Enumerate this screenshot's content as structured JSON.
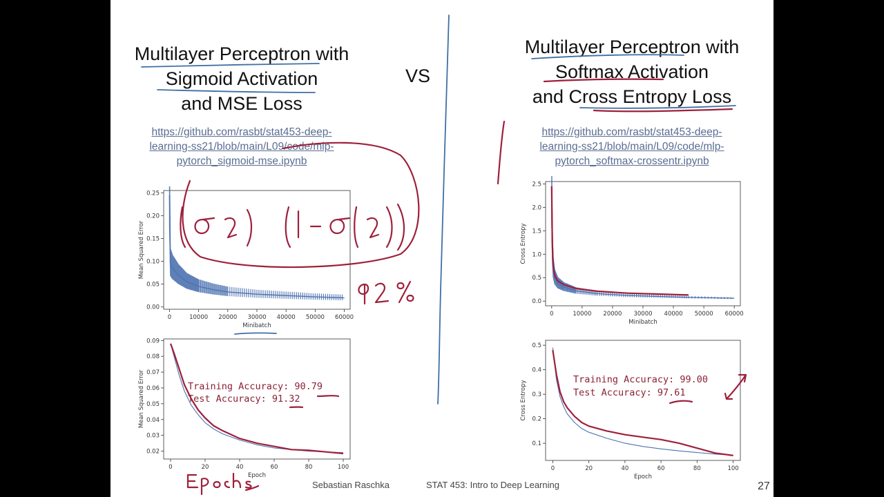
{
  "left": {
    "title_lines": [
      "Multilayer Perceptron with",
      "Sigmoid Activation",
      "and MSE Loss"
    ],
    "link_lines": [
      "https://github.com/rasbt/stat453-deep-",
      "learning-ss21/blob/main/L09/code/mlp-",
      "pytorch_sigmoid-mse.ipynb"
    ]
  },
  "vs_label": "VS",
  "right": {
    "title_lines": [
      "Multilayer Perceptron with",
      "Softmax Activation",
      "and Cross Entropy Loss"
    ],
    "link_lines": [
      "https://github.com/rasbt/stat453-deep-",
      "learning-ss21/blob/main/L09/code/mlp-",
      "pytorch_softmax-crossentr.ipynb"
    ]
  },
  "footer": {
    "author": "Sebastian Raschka",
    "course": "STAT 453: Intro to Deep Learning",
    "page": "27"
  },
  "accuracy_notes": {
    "left_train": "Training Accuracy: 90.79",
    "left_test": "Test Accuracy: 91.32",
    "right_train": "Training Accuracy: 99.00",
    "right_test": "Test Accuracy: 97.61"
  },
  "colors": {
    "ink": "#9e1f3a",
    "series": "#4c72b0",
    "link": "#5a6d92"
  },
  "chart_data": [
    {
      "id": "left-minibatch",
      "type": "line",
      "xlabel": "Minibatch",
      "ylabel": "Mean Squared Error",
      "xticks": [
        0,
        10000,
        20000,
        30000,
        40000,
        50000,
        60000
      ],
      "yticks": [
        0.0,
        0.05,
        0.1,
        0.15,
        0.2,
        0.25
      ],
      "ytick_labels": [
        "0.00",
        "0.05",
        "0.10",
        "0.15",
        "0.20",
        "0.25"
      ],
      "xlim": [
        -2000,
        62000
      ],
      "ylim": [
        -0.005,
        0.255
      ],
      "series": [
        {
          "x": [
            0,
            300,
            1000,
            3000,
            6000,
            10000,
            15000,
            20000,
            30000,
            40000,
            50000,
            60000
          ],
          "y": [
            0.245,
            0.095,
            0.085,
            0.07,
            0.055,
            0.045,
            0.038,
            0.033,
            0.028,
            0.025,
            0.022,
            0.02
          ]
        }
      ]
    },
    {
      "id": "left-epoch",
      "type": "line",
      "xlabel": "Epoch",
      "ylabel": "Mean Squared Error",
      "xticks": [
        0,
        20,
        40,
        60,
        80,
        100
      ],
      "yticks": [
        0.02,
        0.03,
        0.04,
        0.05,
        0.06,
        0.07,
        0.08,
        0.09
      ],
      "ytick_labels": [
        "0.02",
        "0.03",
        "0.04",
        "0.05",
        "0.06",
        "0.07",
        "0.08",
        "0.09"
      ],
      "xlim": [
        -4,
        104
      ],
      "ylim": [
        0.015,
        0.091
      ],
      "series": [
        {
          "x": [
            0,
            2,
            5,
            8,
            12,
            16,
            20,
            25,
            30,
            40,
            50,
            60,
            70,
            80,
            90,
            100
          ],
          "y": [
            0.088,
            0.08,
            0.068,
            0.058,
            0.049,
            0.043,
            0.038,
            0.034,
            0.031,
            0.027,
            0.024,
            0.022,
            0.021,
            0.02,
            0.0195,
            0.019
          ]
        },
        {
          "x": [
            0,
            2,
            5,
            8,
            12,
            16,
            20,
            25,
            30,
            40,
            50,
            60,
            70,
            80,
            90,
            100
          ],
          "y": [
            0.088,
            0.082,
            0.072,
            0.062,
            0.053,
            0.046,
            0.041,
            0.036,
            0.033,
            0.028,
            0.025,
            0.023,
            0.021,
            0.0205,
            0.0195,
            0.0185
          ]
        }
      ]
    },
    {
      "id": "right-minibatch",
      "type": "line",
      "xlabel": "Minibatch",
      "ylabel": "Cross Entropy",
      "xticks": [
        0,
        10000,
        20000,
        30000,
        40000,
        50000,
        60000
      ],
      "yticks": [
        0.0,
        0.5,
        1.0,
        1.5,
        2.0,
        2.5
      ],
      "ytick_labels": [
        "0.0",
        "0.5",
        "1.0",
        "1.5",
        "2.0",
        "2.5"
      ],
      "xlim": [
        -2000,
        62000
      ],
      "ylim": [
        -0.1,
        2.55
      ],
      "series": [
        {
          "x": [
            0,
            200,
            500,
            1000,
            2000,
            4000,
            8000,
            15000,
            25000,
            35000,
            45000,
            60000
          ],
          "y": [
            2.4,
            1.2,
            0.7,
            0.5,
            0.38,
            0.3,
            0.22,
            0.16,
            0.12,
            0.1,
            0.08,
            0.06
          ]
        }
      ]
    },
    {
      "id": "right-epoch",
      "type": "line",
      "xlabel": "Epoch",
      "ylabel": "Cross Entropy",
      "xticks": [
        0,
        20,
        40,
        60,
        80,
        100
      ],
      "yticks": [
        0.1,
        0.2,
        0.3,
        0.4,
        0.5
      ],
      "ytick_labels": [
        "0.1",
        "0.2",
        "0.3",
        "0.4",
        "0.5"
      ],
      "xlim": [
        -4,
        104
      ],
      "ylim": [
        0.03,
        0.52
      ],
      "series": [
        {
          "x": [
            0,
            2,
            4,
            6,
            8,
            12,
            16,
            20,
            30,
            40,
            50,
            60,
            70,
            80,
            90,
            100
          ],
          "y": [
            0.49,
            0.36,
            0.29,
            0.25,
            0.22,
            0.185,
            0.16,
            0.145,
            0.12,
            0.1,
            0.087,
            0.077,
            0.069,
            0.062,
            0.056,
            0.051
          ]
        },
        {
          "x": [
            0,
            2,
            4,
            6,
            8,
            12,
            16,
            20,
            30,
            40,
            50,
            60,
            70,
            80,
            90,
            100
          ],
          "y": [
            0.48,
            0.38,
            0.31,
            0.27,
            0.245,
            0.21,
            0.185,
            0.17,
            0.15,
            0.135,
            0.125,
            0.115,
            0.1,
            0.08,
            0.06,
            0.05
          ]
        }
      ]
    }
  ]
}
